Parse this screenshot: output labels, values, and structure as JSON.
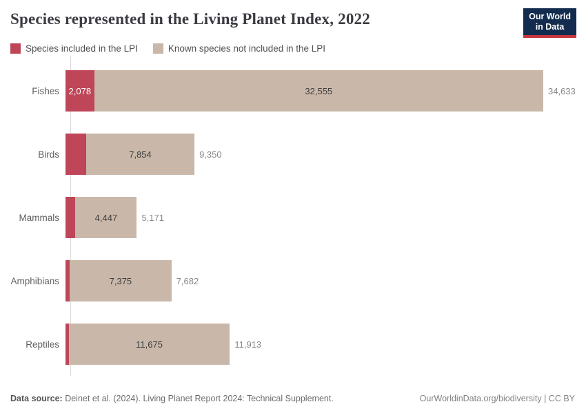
{
  "header": {
    "title": "Species represented in the Living Planet Index, 2022",
    "logo_line1": "Our World",
    "logo_line2": "in Data"
  },
  "legend": [
    {
      "label": "Species included in the LPI",
      "color": "#be4658"
    },
    {
      "label": "Known species not included in the LPI",
      "color": "#c9b8a9"
    }
  ],
  "chart_data": {
    "type": "bar",
    "orientation": "horizontal",
    "title": "Species represented in the Living Planet Index, 2022",
    "categories": [
      "Fishes",
      "Birds",
      "Mammals",
      "Amphibians",
      "Reptiles"
    ],
    "series": [
      {
        "name": "Species included in the LPI",
        "color": "#be4658",
        "values": [
          2078,
          1496,
          724,
          307,
          238
        ],
        "value_labels": [
          "2,078",
          "",
          "",
          "",
          ""
        ]
      },
      {
        "name": "Known species not included in the LPI",
        "color": "#c9b8a9",
        "values": [
          32555,
          7854,
          4447,
          7375,
          11675
        ],
        "value_labels": [
          "32,555",
          "7,854",
          "4,447",
          "7,375",
          "11,675"
        ]
      }
    ],
    "totals": [
      34633,
      9350,
      5171,
      7682,
      11913
    ],
    "total_labels": [
      "34,633",
      "9,350",
      "5,171",
      "7,682",
      "11,913"
    ],
    "xmax": 34633,
    "xlabel": "",
    "ylabel": "",
    "grid": false,
    "legend_position": "top"
  },
  "footer": {
    "source_label": "Data source:",
    "source_text": " Deinet et al. (2024). Living Planet Report 2024: Technical Supplement.",
    "right_text": "OurWorldinData.org/biodiversity | CC BY"
  }
}
